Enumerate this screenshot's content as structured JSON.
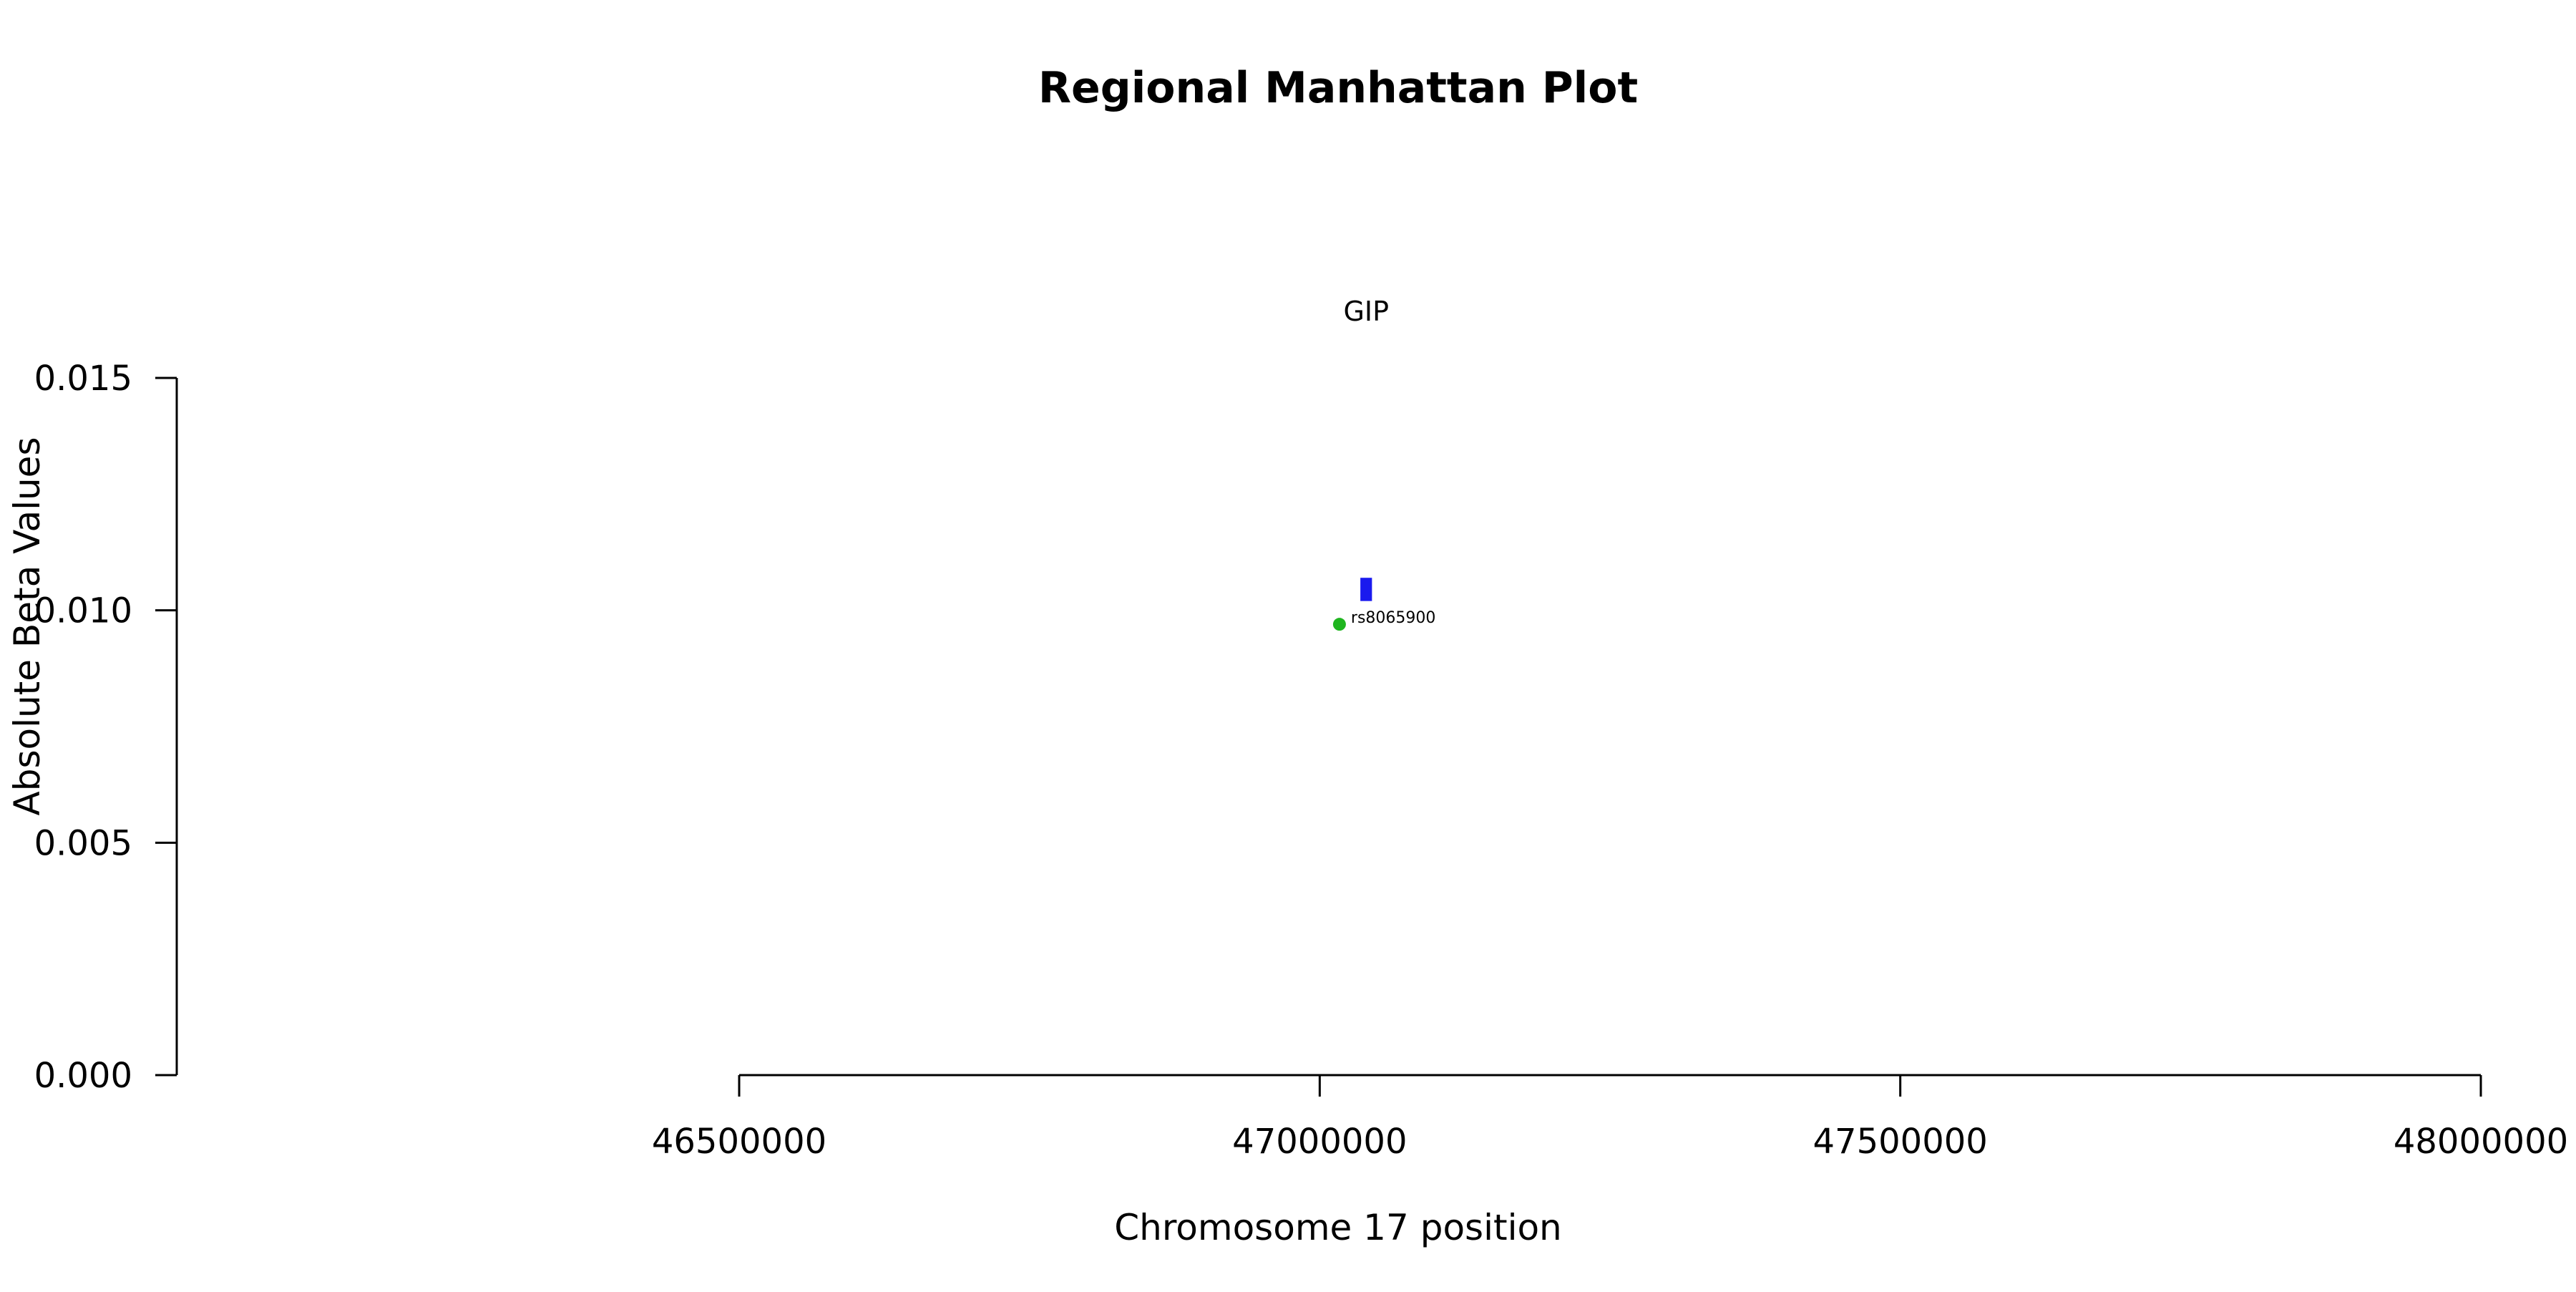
{
  "chart_data": {
    "type": "scatter",
    "title": "Regional Manhattan Plot",
    "xlabel": "Chromosome 17 position",
    "ylabel": "Absolute Beta Values",
    "xlim": [
      46500000,
      48000000
    ],
    "ylim": [
      0.0,
      0.015
    ],
    "x_ticks": [
      46500000,
      47000000,
      47500000,
      48000000
    ],
    "x_tick_labels": [
      "46500000",
      "47000000",
      "47500000",
      "48000000"
    ],
    "y_ticks": [
      0.0,
      0.005,
      0.01,
      0.015
    ],
    "y_tick_labels": [
      "0.000",
      "0.005",
      "0.010",
      "0.015"
    ],
    "grid": false,
    "points": [
      {
        "x": 47017000,
        "y": 0.0097,
        "label": "rs8065900",
        "color": "#1fb51f"
      }
    ],
    "genes": [
      {
        "name": "GIP",
        "start": 47035000,
        "end": 47045000,
        "y_low": 0.0102,
        "y_high": 0.0107,
        "color": "#1a1aee"
      }
    ]
  }
}
